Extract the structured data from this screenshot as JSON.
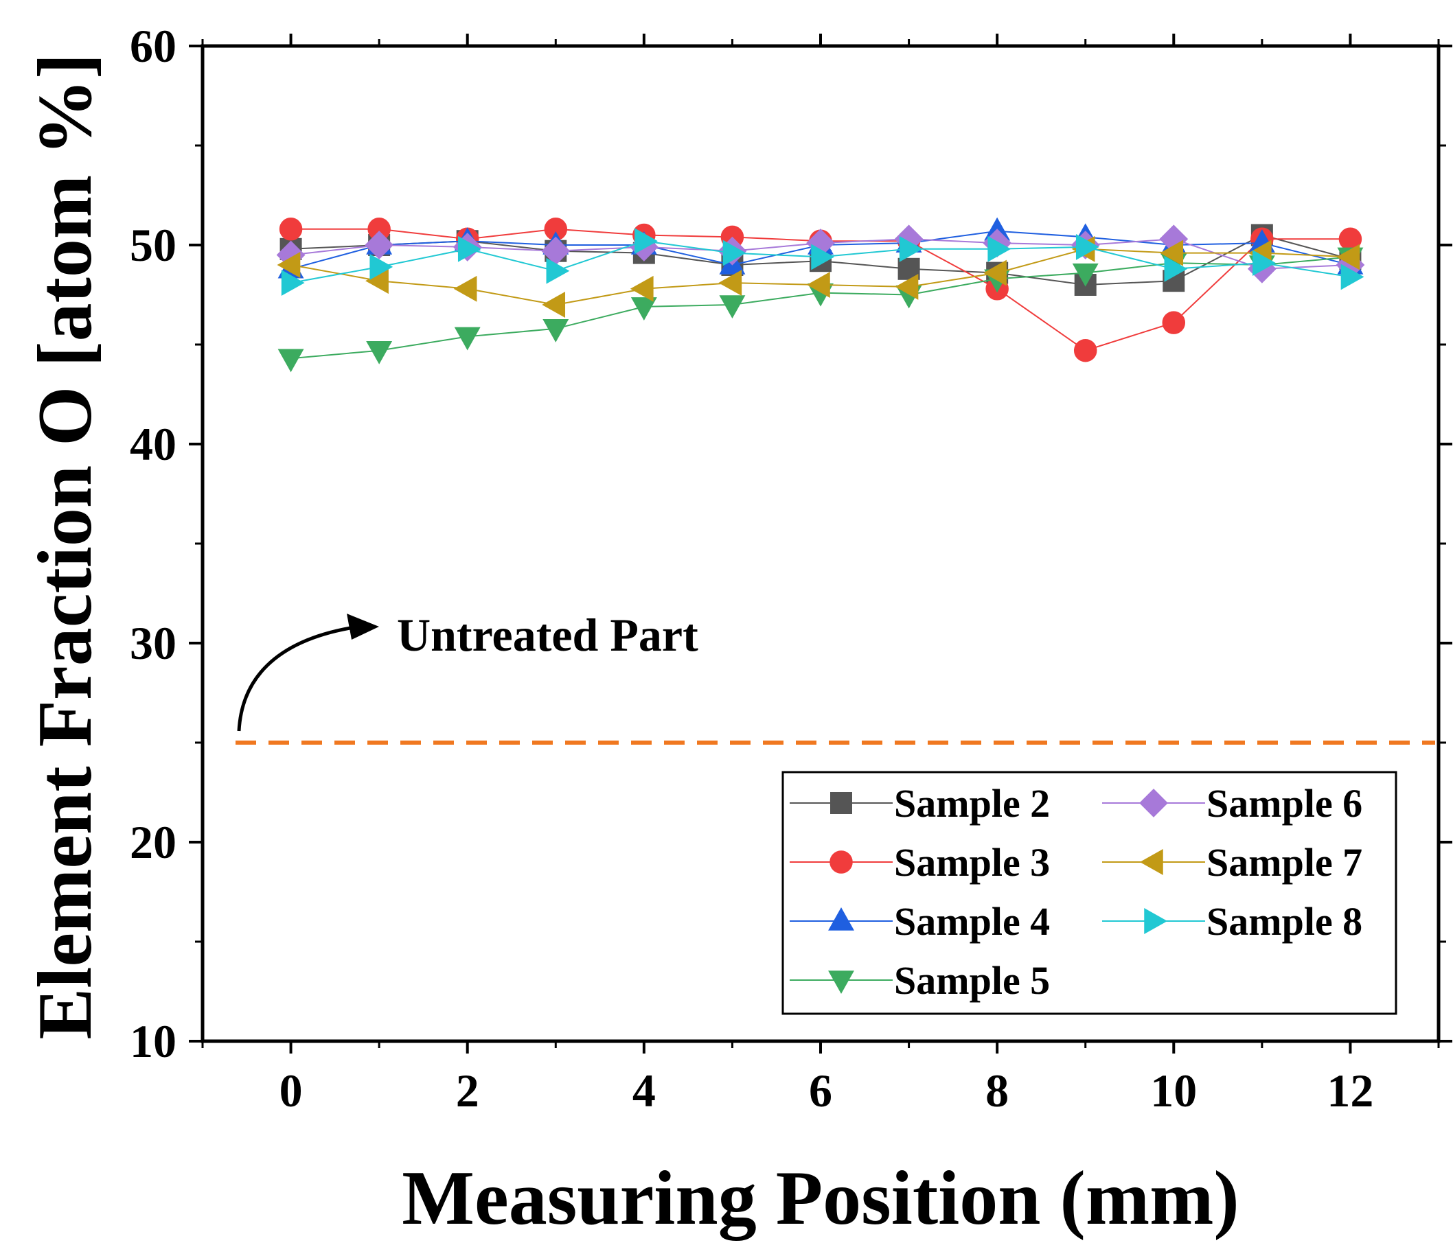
{
  "chart_data": {
    "type": "line",
    "xlabel": "Measuring Position (mm)",
    "ylabel": "Element Fraction O [atom %]",
    "xlim": [
      -1,
      13
    ],
    "ylim": [
      10,
      60
    ],
    "xticks": [
      0,
      2,
      4,
      6,
      8,
      10,
      12
    ],
    "yticks": [
      10,
      20,
      30,
      40,
      50,
      60
    ],
    "grid": false,
    "legend_position": "bottom-right",
    "x": [
      0,
      1,
      2,
      3,
      4,
      5,
      6,
      7,
      8,
      9,
      10,
      11,
      12
    ],
    "series": [
      {
        "name": "Sample 2",
        "color": "#555555",
        "marker": "square",
        "values": [
          49.8,
          50.0,
          50.2,
          49.7,
          49.6,
          49.0,
          49.2,
          48.8,
          48.6,
          48.0,
          48.2,
          50.5,
          49.3
        ]
      },
      {
        "name": "Sample 3",
        "color": "#f03c3c",
        "marker": "circle",
        "values": [
          50.8,
          50.8,
          50.3,
          50.8,
          50.5,
          50.4,
          50.2,
          50.2,
          47.8,
          44.7,
          46.1,
          50.3,
          50.3
        ]
      },
      {
        "name": "Sample 4",
        "color": "#1f5fe0",
        "marker": "triangle-up",
        "values": [
          48.8,
          50.0,
          50.2,
          50.0,
          50.0,
          49.0,
          50.0,
          50.1,
          50.7,
          50.4,
          50.0,
          50.1,
          49.0
        ]
      },
      {
        "name": "Sample 5",
        "color": "#3cab5f",
        "marker": "triangle-down",
        "values": [
          44.3,
          44.7,
          45.4,
          45.8,
          46.9,
          47.0,
          47.6,
          47.5,
          48.3,
          48.6,
          49.1,
          49.0,
          49.4
        ]
      },
      {
        "name": "Sample 6",
        "color": "#a779d9",
        "marker": "diamond",
        "values": [
          49.5,
          50.0,
          49.9,
          49.7,
          49.9,
          49.7,
          50.1,
          50.3,
          50.1,
          50.0,
          50.3,
          48.8,
          49.0
        ]
      },
      {
        "name": "Sample 7",
        "color": "#c29a16",
        "marker": "triangle-left",
        "values": [
          49.0,
          48.2,
          47.8,
          47.0,
          47.8,
          48.1,
          48.0,
          47.9,
          48.6,
          49.8,
          49.6,
          49.6,
          49.4
        ]
      },
      {
        "name": "Sample 8",
        "color": "#21c8d3",
        "marker": "triangle-right",
        "values": [
          48.1,
          48.9,
          49.8,
          48.7,
          50.2,
          49.6,
          49.4,
          49.8,
          49.8,
          49.9,
          48.8,
          49.1,
          48.4
        ]
      }
    ],
    "reference_line": {
      "value": 25,
      "color": "#f07820",
      "style": "dashed"
    },
    "annotation": {
      "text": "Untreated Part"
    }
  }
}
